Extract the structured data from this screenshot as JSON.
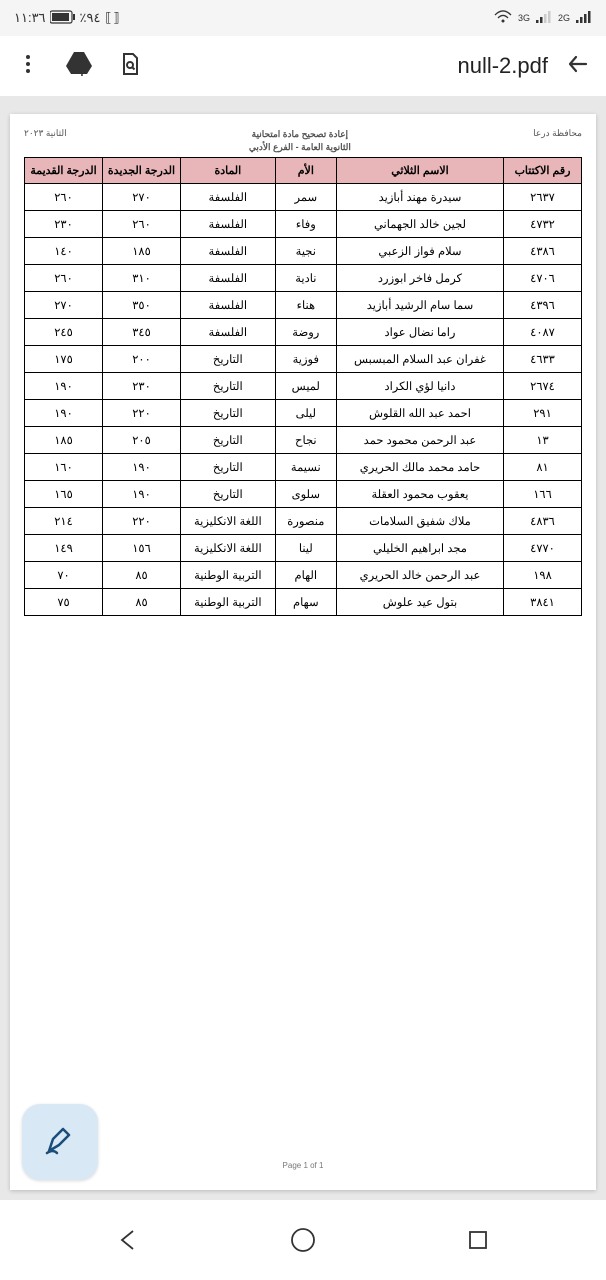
{
  "statusbar": {
    "time": "١١:٣٦",
    "battery_pct": "٪٩٤",
    "network1": "3G",
    "network2": "2G"
  },
  "appbar": {
    "filename": "null-2.pdf"
  },
  "doc": {
    "header_right": "محافظة درعا",
    "header_center1": "إعادة تصحيح مادة امتحانية",
    "header_center2": "الثانوية العامة - الفرع الأدبي",
    "header_left": "الثانية ٢٠٢٣",
    "page_label": "Page 1 of 1"
  },
  "table": {
    "cols": {
      "sub": "رقم الاكتتاب",
      "name": "الاسم الثلاثي",
      "mom": "الأم",
      "subj": "المادة",
      "new": "الدرجة الجديدة",
      "old": "الدرجة القديمة"
    },
    "rows": [
      {
        "sub": "٢٦٣٧",
        "name": "سيدرة مهند أبازيد",
        "mom": "سمر",
        "subj": "الفلسفة",
        "new": "٢٧٠",
        "old": "٢٦٠"
      },
      {
        "sub": "٤٧٣٢",
        "name": "لجين خالد الجهماني",
        "mom": "وفاء",
        "subj": "الفلسفة",
        "new": "٢٦٠",
        "old": "٢٣٠"
      },
      {
        "sub": "٤٣٨٦",
        "name": "سلام فواز الزعبي",
        "mom": "نجية",
        "subj": "الفلسفة",
        "new": "١٨٥",
        "old": "١٤٠"
      },
      {
        "sub": "٤٧٠٦",
        "name": "كرمل فاخر ابوزرد",
        "mom": "نادية",
        "subj": "الفلسفة",
        "new": "٣١٠",
        "old": "٢٦٠"
      },
      {
        "sub": "٤٣٩٦",
        "name": "سما سام الرشيد أبازيد",
        "mom": "هناء",
        "subj": "الفلسفة",
        "new": "٣٥٠",
        "old": "٢٧٠"
      },
      {
        "sub": "٤٠٨٧",
        "name": "راما نضال عواد",
        "mom": "روضة",
        "subj": "الفلسفة",
        "new": "٣٤٥",
        "old": "٢٤٥"
      },
      {
        "sub": "٤٦٣٣",
        "name": "غفران عبد السلام المبسبس",
        "mom": "فوزية",
        "subj": "التاريخ",
        "new": "٢٠٠",
        "old": "١٧٥"
      },
      {
        "sub": "٢٦٧٤",
        "name": "دانيا لؤي الكراد",
        "mom": "لميس",
        "subj": "التاريخ",
        "new": "٢٣٠",
        "old": "١٩٠"
      },
      {
        "sub": "٢٩١",
        "name": "احمد عبد الله القلوش",
        "mom": "ليلى",
        "subj": "التاريخ",
        "new": "٢٢٠",
        "old": "١٩٠"
      },
      {
        "sub": "١٣",
        "name": "عبد الرحمن محمود حمد",
        "mom": "نجاح",
        "subj": "التاريخ",
        "new": "٢٠٥",
        "old": "١٨٥"
      },
      {
        "sub": "٨١",
        "name": "حامد محمد مالك الحريري",
        "mom": "نسيمة",
        "subj": "التاريخ",
        "new": "١٩٠",
        "old": "١٦٠"
      },
      {
        "sub": "١٦٦",
        "name": "يعقوب محمود العقلة",
        "mom": "سلوى",
        "subj": "التاريخ",
        "new": "١٩٠",
        "old": "١٦٥"
      },
      {
        "sub": "٤٨٣٦",
        "name": "ملاك شفيق السلامات",
        "mom": "منصورة",
        "subj": "اللغة الانكليزية",
        "new": "٢٢٠",
        "old": "٢١٤"
      },
      {
        "sub": "٤٧٧٠",
        "name": "مجد ابراهيم الخليلي",
        "mom": "لينا",
        "subj": "اللغة الانكليزية",
        "new": "١٥٦",
        "old": "١٤٩"
      },
      {
        "sub": "١٩٨",
        "name": "عبد الرحمن خالد الحريري",
        "mom": "الهام",
        "subj": "التربية الوطنية",
        "new": "٨٥",
        "old": "٧٠"
      },
      {
        "sub": "٣٨٤١",
        "name": "بتول عيد علوش",
        "mom": "سهام",
        "subj": "التربية الوطنية",
        "new": "٨٥",
        "old": "٧٥"
      }
    ]
  },
  "colors": {
    "header_bg": "#e8b5b8",
    "fab_bg": "#d9e8f5"
  }
}
